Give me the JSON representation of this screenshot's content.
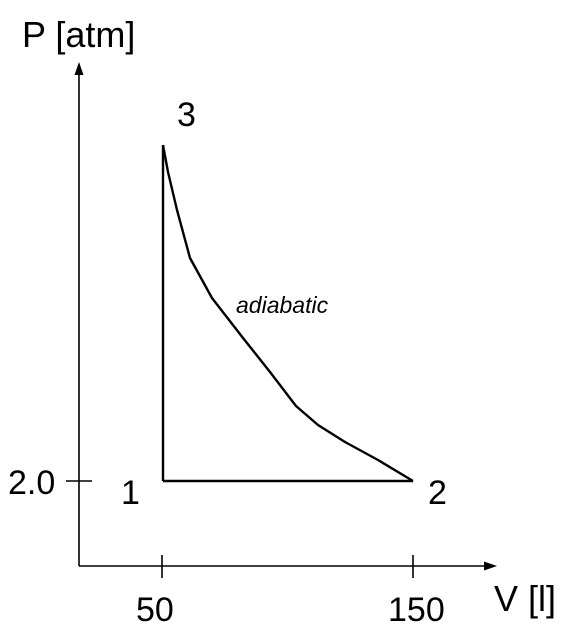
{
  "axes": {
    "y_label": "P [atm]",
    "x_label": "V [l]",
    "y_tick": "2.0",
    "x_ticks": [
      "50",
      "150"
    ]
  },
  "points": {
    "p1": "1",
    "p2": "2",
    "p3": "3"
  },
  "curve_label": "adiabatic",
  "colors": {
    "line": "#000000",
    "background": "#ffffff"
  }
}
